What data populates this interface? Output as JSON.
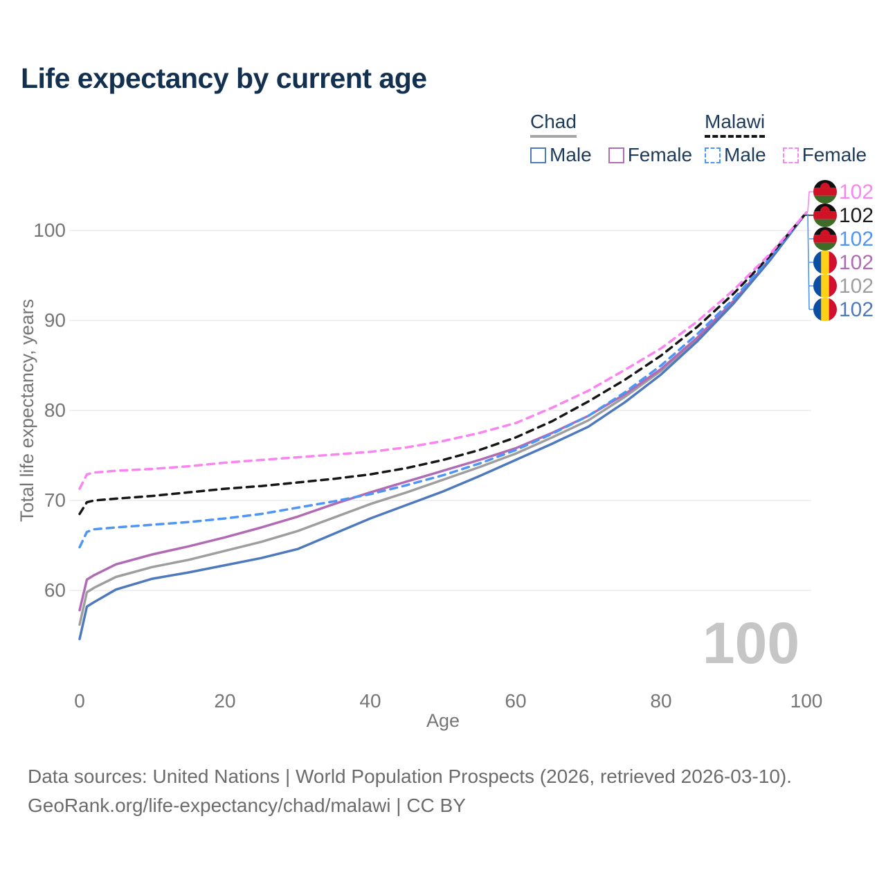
{
  "title": "Life expectancy by current age",
  "legend": {
    "groups": [
      {
        "label": "Chad",
        "line_style": "solid",
        "underline_color": "#a6a6a6",
        "items": [
          {
            "label": "Male",
            "color": "#4e79bd",
            "dashed": false,
            "series": "chad_male"
          },
          {
            "label": "Female",
            "color": "#b16ab4",
            "dashed": false,
            "series": "chad_female"
          }
        ]
      },
      {
        "label": "Malawi",
        "line_style": "dashed",
        "underline_color": "#141414",
        "items": [
          {
            "label": "Male",
            "color": "#4e95f5",
            "dashed": true,
            "series": "malawi_male"
          },
          {
            "label": "Female",
            "color": "#fa85f0",
            "dashed": true,
            "series": "malawi_female"
          }
        ]
      }
    ]
  },
  "chart_data": {
    "type": "line",
    "title": "Life expectancy by current age",
    "xlabel": "Age",
    "ylabel": "Total life expectancy, years",
    "xlim": [
      0,
      100
    ],
    "ylim": [
      54,
      104
    ],
    "x_ticks": [
      0,
      20,
      40,
      60,
      80,
      100
    ],
    "y_ticks": [
      60,
      70,
      80,
      90,
      100
    ],
    "grid": "horizontal-only",
    "x": [
      0,
      1,
      2,
      5,
      10,
      15,
      20,
      25,
      30,
      35,
      40,
      45,
      50,
      55,
      60,
      65,
      70,
      75,
      80,
      85,
      90,
      95,
      100
    ],
    "series": [
      {
        "name": "Chad All",
        "country": "Chad",
        "sex": "all",
        "color": "#9e9e9e",
        "dashed": false,
        "values": [
          56.2,
          59.8,
          60.3,
          61.5,
          62.6,
          63.4,
          64.4,
          65.4,
          66.6,
          68.1,
          69.6,
          70.9,
          72.3,
          73.7,
          75.2,
          77.0,
          78.9,
          81.5,
          84.4,
          88.0,
          92.1,
          96.8,
          102
        ]
      },
      {
        "name": "Chad Female",
        "country": "Chad",
        "sex": "female",
        "color": "#b16ab4",
        "dashed": false,
        "values": [
          57.8,
          61.2,
          61.7,
          62.9,
          64.0,
          64.9,
          65.9,
          67.0,
          68.2,
          69.6,
          70.9,
          72.1,
          73.3,
          74.5,
          75.8,
          77.5,
          79.4,
          81.8,
          84.6,
          88.1,
          92.2,
          96.8,
          102
        ]
      },
      {
        "name": "Chad Male",
        "country": "Chad",
        "sex": "male",
        "color": "#4e79bd",
        "dashed": false,
        "values": [
          54.6,
          58.2,
          58.7,
          60.1,
          61.3,
          62.0,
          62.8,
          63.6,
          64.6,
          66.3,
          68.0,
          69.5,
          71.0,
          72.7,
          74.5,
          76.3,
          78.2,
          80.9,
          84.0,
          87.7,
          91.9,
          96.7,
          102
        ]
      },
      {
        "name": "Malawi Male",
        "country": "Malawi",
        "sex": "male",
        "color": "#4e95f5",
        "dashed": true,
        "values": [
          64.8,
          66.5,
          66.8,
          67.0,
          67.3,
          67.6,
          68.0,
          68.5,
          69.2,
          69.9,
          70.7,
          71.7,
          72.8,
          74.1,
          75.6,
          77.4,
          79.4,
          82.0,
          85.0,
          88.5,
          92.4,
          97.0,
          102
        ]
      },
      {
        "name": "Malawi All",
        "country": "Malawi",
        "sex": "all",
        "color": "#161616",
        "dashed": true,
        "values": [
          68.5,
          69.8,
          70.0,
          70.2,
          70.5,
          70.9,
          71.3,
          71.6,
          72.0,
          72.4,
          72.9,
          73.6,
          74.5,
          75.6,
          77.0,
          78.8,
          81.0,
          83.4,
          86.1,
          89.3,
          93.0,
          97.2,
          102
        ]
      },
      {
        "name": "Malawi Female",
        "country": "Malawi",
        "sex": "female",
        "color": "#fa85f0",
        "dashed": true,
        "values": [
          71.3,
          72.9,
          73.1,
          73.3,
          73.5,
          73.8,
          74.2,
          74.5,
          74.8,
          75.1,
          75.4,
          75.9,
          76.6,
          77.5,
          78.6,
          80.3,
          82.2,
          84.5,
          86.9,
          89.9,
          93.4,
          97.4,
          102
        ]
      }
    ],
    "end_labels": [
      {
        "flag": "malawi",
        "series": "Malawi Female",
        "value": "102",
        "color": "#fa85f0"
      },
      {
        "flag": "malawi",
        "series": "Malawi All",
        "value": "102",
        "color": "#1a1a1a"
      },
      {
        "flag": "malawi",
        "series": "Malawi Male",
        "value": "102",
        "color": "#4e95f5"
      },
      {
        "flag": "chad",
        "series": "Chad Female",
        "value": "102",
        "color": "#b16ab4"
      },
      {
        "flag": "chad",
        "series": "Chad All",
        "value": "102",
        "color": "#9e9e9e"
      },
      {
        "flag": "chad",
        "series": "Chad Male",
        "value": "102",
        "color": "#4e79bd"
      }
    ],
    "hover_age_indicator": "100"
  },
  "colors": {
    "title": "#14304f",
    "legend_text": "#1d3a5a",
    "tick_text": "#757575",
    "grid": "#e8e8e8",
    "watermark": "#c6c6c6",
    "footer_text": "#6b6b6b"
  },
  "footer": {
    "line1": "Data sources: United Nations | World Population Prospects (2026, retrieved 2026-03-10).",
    "line2": "GeoRank.org/life-expectancy/chad/malawi | CC BY"
  }
}
